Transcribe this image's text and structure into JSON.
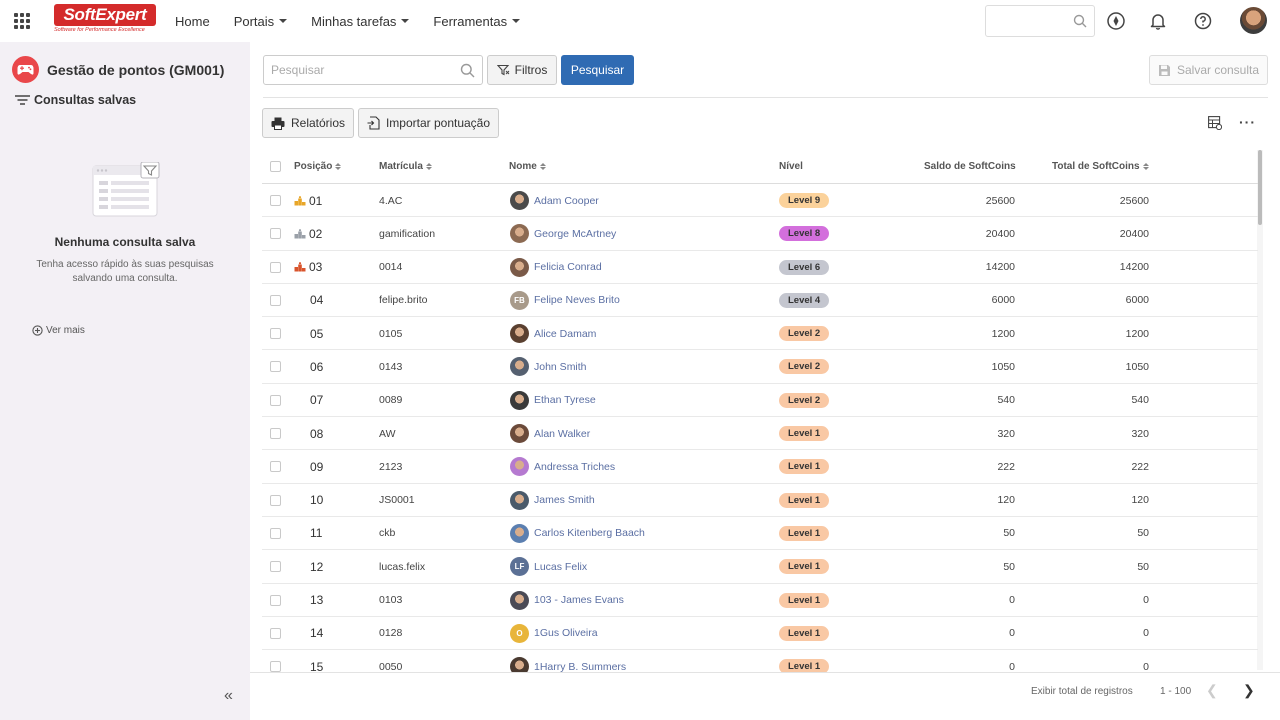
{
  "brand": {
    "name": "SoftExpert",
    "tagline": "Software for Performance Excellence",
    "color": "#d42b2b"
  },
  "nav": {
    "items": [
      "Home",
      "Portais",
      "Minhas tarefas",
      "Ferramentas"
    ]
  },
  "sidebar": {
    "title": "Gestão de pontos (GM001)",
    "saved_queries": "Consultas salvas",
    "empty_title": "Nenhuma consulta salva",
    "empty_text": "Tenha acesso rápido às suas pesquisas salvando uma consulta.",
    "ver_mais": "Ver mais"
  },
  "toolbar": {
    "search_placeholder": "Pesquisar",
    "filtros": "Filtros",
    "pesquisar": "Pesquisar",
    "salvar": "Salvar consulta",
    "relatorios": "Relatórios",
    "importar": "Importar pontuação",
    "primary_color": "#2f6bb3"
  },
  "table": {
    "headers": {
      "posicao": "Posição",
      "matricula": "Matrícula",
      "nome": "Nome",
      "nivel": "Nível",
      "saldo": "Saldo de SoftCoins",
      "total": "Total de SoftCoins"
    },
    "rows": [
      {
        "pos": "01",
        "medal": "gold",
        "matricula": "4.AC",
        "nome": "Adam Cooper",
        "avatar": "photo",
        "level": "Level 9",
        "saldo": "25600",
        "total": "25600"
      },
      {
        "pos": "02",
        "medal": "silver",
        "matricula": "gamification",
        "nome": "George McArtney",
        "avatar": "photo",
        "level": "Level 8",
        "saldo": "20400",
        "total": "20400"
      },
      {
        "pos": "03",
        "medal": "bronze",
        "matricula": "0014",
        "nome": "Felicia Conrad",
        "avatar": "photo",
        "level": "Level 6",
        "saldo": "14200",
        "total": "14200"
      },
      {
        "pos": "04",
        "medal": "",
        "matricula": "felipe.brito",
        "nome": "Felipe Neves Brito",
        "avatar": "FB",
        "level": "Level 4",
        "saldo": "6000",
        "total": "6000"
      },
      {
        "pos": "05",
        "medal": "",
        "matricula": "0105",
        "nome": "Alice Damam",
        "avatar": "photo",
        "level": "Level 2",
        "saldo": "1200",
        "total": "1200"
      },
      {
        "pos": "06",
        "medal": "",
        "matricula": "0143",
        "nome": "John Smith",
        "avatar": "photo",
        "level": "Level 2",
        "saldo": "1050",
        "total": "1050"
      },
      {
        "pos": "07",
        "medal": "",
        "matricula": "0089",
        "nome": "Ethan Tyrese",
        "avatar": "photo",
        "level": "Level 2",
        "saldo": "540",
        "total": "540"
      },
      {
        "pos": "08",
        "medal": "",
        "matricula": "AW",
        "nome": "Alan Walker",
        "avatar": "photo",
        "level": "Level 1",
        "saldo": "320",
        "total": "320"
      },
      {
        "pos": "09",
        "medal": "",
        "matricula": "2123",
        "nome": "Andressa Triches",
        "avatar": "photo",
        "level": "Level 1",
        "saldo": "222",
        "total": "222"
      },
      {
        "pos": "10",
        "medal": "",
        "matricula": "JS0001",
        "nome": "James Smith",
        "avatar": "photo",
        "level": "Level 1",
        "saldo": "120",
        "total": "120"
      },
      {
        "pos": "11",
        "medal": "",
        "matricula": "ckb",
        "nome": "Carlos Kitenberg Baach",
        "avatar": "photo",
        "level": "Level 1",
        "saldo": "50",
        "total": "50"
      },
      {
        "pos": "12",
        "medal": "",
        "matricula": "lucas.felix",
        "nome": "Lucas Felix",
        "avatar": "LF",
        "level": "Level 1",
        "saldo": "50",
        "total": "50"
      },
      {
        "pos": "13",
        "medal": "",
        "matricula": "0103",
        "nome": "103 - James Evans",
        "avatar": "photo",
        "level": "Level 1",
        "saldo": "0",
        "total": "0"
      },
      {
        "pos": "14",
        "medal": "",
        "matricula": "0128",
        "nome": "1Gus Oliveira",
        "avatar": "O",
        "level": "Level 1",
        "saldo": "0",
        "total": "0"
      },
      {
        "pos": "15",
        "medal": "",
        "matricula": "0050",
        "nome": "1Harry B. Summers",
        "avatar": "photo",
        "level": "Level 1",
        "saldo": "0",
        "total": "0"
      }
    ]
  },
  "level_colors": {
    "Level 9": "#fbd29b",
    "Level 8": "#d36fdc",
    "Level 6": "#c4c6cf",
    "Level 4": "#c4c6cf",
    "Level 2": "#f9c8a4",
    "Level 1": "#f9c8a4"
  },
  "footer": {
    "total_label": "Exibir total de registros",
    "range": "1 - 100"
  }
}
